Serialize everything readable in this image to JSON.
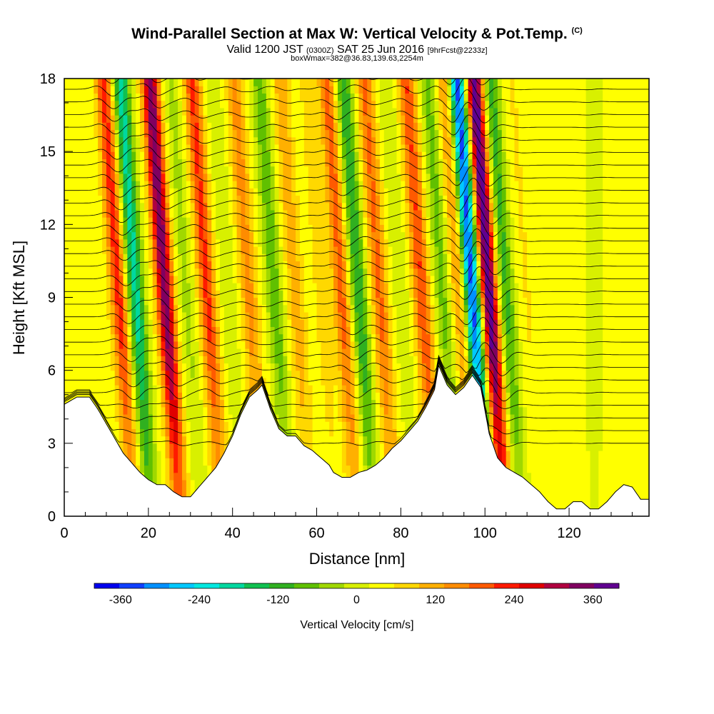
{
  "header": {
    "title_main": "Wind-Parallel Section at Max W: Vertical Velocity & Pot.Temp.",
    "title_copyright": "(C)",
    "subtitle_valid": "Valid 1200 JST",
    "subtitle_utc": "(0300Z)",
    "subtitle_date": "SAT 25 Jun 2016",
    "subtitle_fcst": "[9hrFcst@2233z]",
    "subtitle_box": "boxWmax=382@36.83,139.63,2254m"
  },
  "chart_data": {
    "type": "heatmap",
    "xlabel": "Distance [nm]",
    "ylabel": "Height [Kft MSL]",
    "xlim": [
      0,
      139
    ],
    "ylim": [
      0,
      18
    ],
    "x_ticks": [
      0,
      20,
      40,
      60,
      80,
      100,
      120
    ],
    "y_ticks": [
      0,
      3,
      6,
      9,
      12,
      15,
      18
    ],
    "colorbar": {
      "label": "Vertical Velocity [cm/s]",
      "ticks": [
        -360,
        -240,
        -120,
        0,
        120,
        240,
        360
      ],
      "range": [
        -400,
        400
      ],
      "colors": [
        "#0000ee",
        "#1040ff",
        "#0090ff",
        "#00c8ff",
        "#00e8e0",
        "#00d8a0",
        "#10c050",
        "#30b020",
        "#60c000",
        "#a0d800",
        "#d8f000",
        "#ffff00",
        "#ffd800",
        "#ffb000",
        "#ff8c00",
        "#ff5a00",
        "#ff1a00",
        "#e00000",
        "#b00040",
        "#800060",
        "#600090"
      ]
    },
    "terrain_heights_kft": [
      [
        0,
        4.6
      ],
      [
        3,
        4.9
      ],
      [
        6,
        4.9
      ],
      [
        8,
        4.4
      ],
      [
        10,
        3.8
      ],
      [
        12,
        3.2
      ],
      [
        14,
        2.6
      ],
      [
        16,
        2.2
      ],
      [
        18,
        1.8
      ],
      [
        20,
        1.5
      ],
      [
        22,
        1.3
      ],
      [
        24,
        1.3
      ],
      [
        26,
        1.0
      ],
      [
        28,
        0.8
      ],
      [
        30,
        0.8
      ],
      [
        32,
        1.2
      ],
      [
        34,
        1.6
      ],
      [
        36,
        2.0
      ],
      [
        38,
        2.6
      ],
      [
        40,
        3.3
      ],
      [
        42,
        4.2
      ],
      [
        44,
        4.9
      ],
      [
        46,
        5.2
      ],
      [
        47,
        5.4
      ],
      [
        49,
        4.4
      ],
      [
        51,
        3.6
      ],
      [
        53,
        3.3
      ],
      [
        55,
        3.3
      ],
      [
        57,
        2.9
      ],
      [
        59,
        2.7
      ],
      [
        61,
        2.4
      ],
      [
        63,
        2.1
      ],
      [
        64,
        1.8
      ],
      [
        66,
        1.6
      ],
      [
        68,
        1.6
      ],
      [
        70,
        1.8
      ],
      [
        72,
        1.9
      ],
      [
        74,
        2.1
      ],
      [
        76,
        2.4
      ],
      [
        78,
        2.8
      ],
      [
        80,
        3.1
      ],
      [
        82,
        3.5
      ],
      [
        84,
        3.9
      ],
      [
        86,
        4.5
      ],
      [
        88,
        5.2
      ],
      [
        89,
        6.2
      ],
      [
        91,
        5.4
      ],
      [
        93,
        5.0
      ],
      [
        95,
        5.3
      ],
      [
        97,
        5.8
      ],
      [
        99,
        5.3
      ],
      [
        101,
        3.4
      ],
      [
        103,
        2.4
      ],
      [
        105,
        2.0
      ],
      [
        107,
        1.8
      ],
      [
        109,
        1.6
      ],
      [
        111,
        1.3
      ],
      [
        113,
        1.0
      ],
      [
        115,
        0.6
      ],
      [
        117,
        0.3
      ],
      [
        119,
        0.3
      ],
      [
        121,
        0.6
      ],
      [
        123,
        0.6
      ],
      [
        125,
        0.3
      ],
      [
        127,
        0.3
      ],
      [
        129,
        0.6
      ],
      [
        131,
        1.0
      ],
      [
        133,
        1.3
      ],
      [
        135,
        1.2
      ],
      [
        137,
        0.7
      ],
      [
        139,
        0.7
      ]
    ],
    "series": [
      {
        "center_x": 13,
        "w_cms": 200,
        "slope": 0.9
      },
      {
        "center_x": 17,
        "w_cms": -220,
        "slope": 0.9
      },
      {
        "center_x": 24,
        "w_cms": 330,
        "slope": 0.9
      },
      {
        "center_x": 29,
        "w_cms": -60,
        "slope": 0.9
      },
      {
        "center_x": 34,
        "w_cms": 190,
        "slope": 0.9
      },
      {
        "center_x": 39,
        "w_cms": -40,
        "slope": 0.9
      },
      {
        "center_x": 44,
        "w_cms": 120,
        "slope": 0.9
      },
      {
        "center_x": 50,
        "w_cms": -110,
        "slope": 0.9
      },
      {
        "center_x": 55,
        "w_cms": 90,
        "slope": 0.9
      },
      {
        "center_x": 61,
        "w_cms": 40,
        "slope": 0.9
      },
      {
        "center_x": 66,
        "w_cms": 160,
        "slope": 0.9
      },
      {
        "center_x": 70,
        "w_cms": -160,
        "slope": 0.9
      },
      {
        "center_x": 75,
        "w_cms": 150,
        "slope": 0.9
      },
      {
        "center_x": 80,
        "w_cms": -40,
        "slope": 0.9
      },
      {
        "center_x": 85,
        "w_cms": 180,
        "slope": 0.9
      },
      {
        "center_x": 90,
        "w_cms": -100,
        "slope": 0.9
      },
      {
        "center_x": 94,
        "w_cms": 120,
        "slope": 0.9
      },
      {
        "center_x": 97,
        "w_cms": -380,
        "slope": 0.9
      },
      {
        "center_x": 101,
        "w_cms": 380,
        "slope": 0.9
      },
      {
        "center_x": 105,
        "w_cms": -140,
        "slope": 0.9
      },
      {
        "center_x": 110,
        "w_cms": 30,
        "slope": 0.9
      },
      {
        "center_x": 126,
        "w_cms": -30,
        "slope": 0.0
      }
    ],
    "isentropes_count": 30
  }
}
